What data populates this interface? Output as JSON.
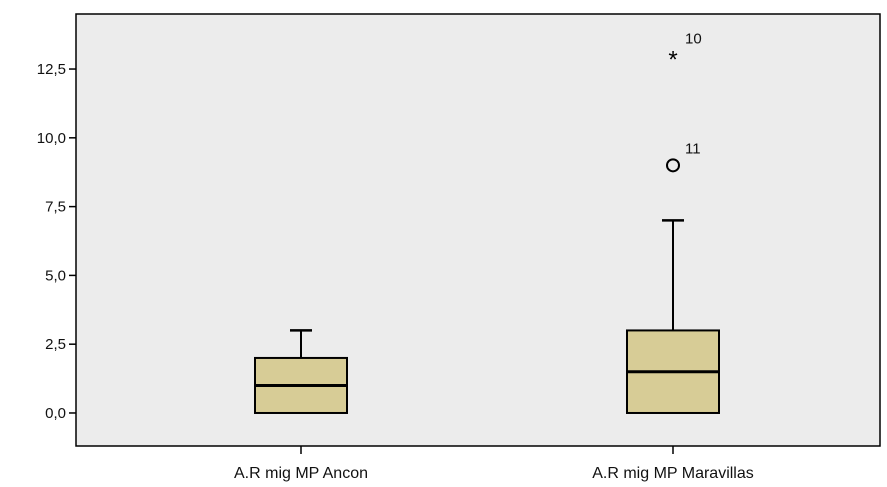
{
  "chart_data": {
    "type": "boxplot",
    "title": "",
    "xlabel": "",
    "ylabel": "",
    "ylim": [
      -1.2,
      14.5
    ],
    "y_ticks": [
      {
        "value": 0,
        "label": "0,0"
      },
      {
        "value": 2.5,
        "label": "2,5"
      },
      {
        "value": 5,
        "label": "5,0"
      },
      {
        "value": 7.5,
        "label": "7,5"
      },
      {
        "value": 10,
        "label": "10,0"
      },
      {
        "value": 12.5,
        "label": "12,5"
      }
    ],
    "grid": false,
    "colors": {
      "plot_background": "#ececec",
      "box_fill": "#d7cc96",
      "line": "#000000"
    },
    "boxes": [
      {
        "category": "A.R mig MP Ancon",
        "whisker_low": 0,
        "q1": 0,
        "median": 1,
        "q3": 2,
        "whisker_high": 3,
        "outliers": []
      },
      {
        "category": "A.R mig MP Maravillas",
        "whisker_low": 0,
        "q1": 0,
        "median": 1.5,
        "q3": 3,
        "whisker_high": 7,
        "outliers": [
          {
            "value": 9,
            "label": "11",
            "marker": "circle"
          },
          {
            "value": 13,
            "label": "10",
            "marker": "star"
          }
        ]
      }
    ]
  }
}
